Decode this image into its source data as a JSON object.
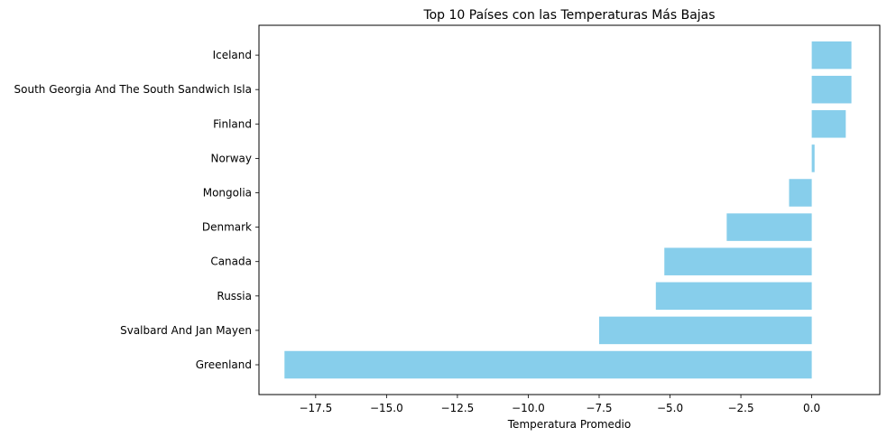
{
  "chart_data": {
    "type": "bar",
    "orientation": "horizontal",
    "title": "Top 10 Países con las Temperaturas Más Bajas",
    "xlabel": "Temperatura Promedio",
    "ylabel": "",
    "categories": [
      "Greenland",
      "Svalbard And Jan Mayen",
      "Russia",
      "Canada",
      "Denmark",
      "Mongolia",
      "Norway",
      "Finland",
      "South Georgia And The South Sandwich Isla",
      "Iceland"
    ],
    "values": [
      -18.6,
      -7.5,
      -5.5,
      -5.2,
      -3.0,
      -0.8,
      0.1,
      1.2,
      1.4,
      1.4
    ],
    "xlim": [
      -19.5,
      2.4
    ],
    "xticks": [
      -17.5,
      -15.0,
      -12.5,
      -10.0,
      -7.5,
      -5.0,
      -2.5,
      0.0
    ],
    "xtick_labels": [
      "−17.5",
      "−15.0",
      "−12.5",
      "−10.0",
      "−7.5",
      "−5.0",
      "−2.5",
      "0.0"
    ],
    "bar_color": "#87ceeb",
    "grid": false,
    "legend": "none"
  }
}
